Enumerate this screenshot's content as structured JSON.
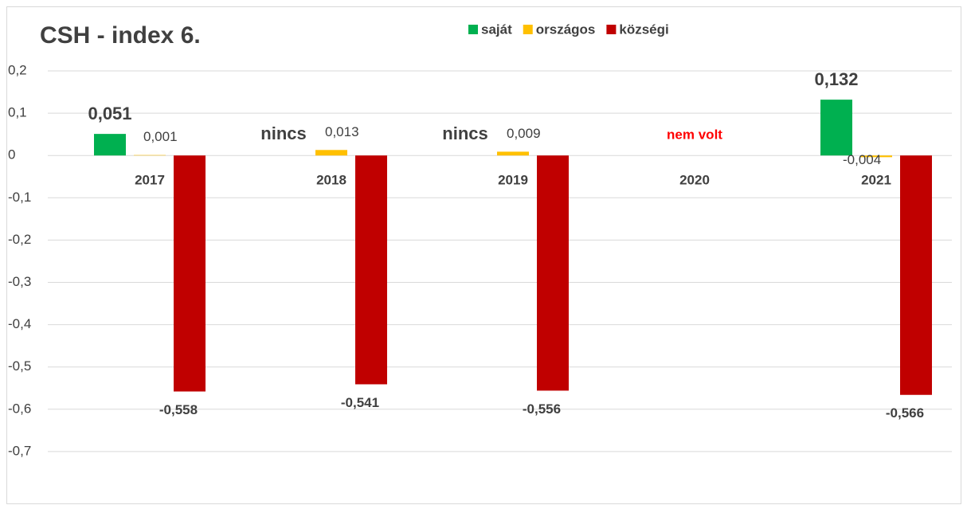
{
  "chart_data": {
    "type": "bar",
    "title": "CSH - index 6.",
    "categories": [
      "2017",
      "2018",
      "2019",
      "2020",
      "2021"
    ],
    "series": [
      {
        "name": "saját",
        "color": "#00b050",
        "values": [
          0.051,
          null,
          null,
          null,
          0.132
        ],
        "value_labels": [
          "0,051",
          null,
          null,
          null,
          "0,132"
        ]
      },
      {
        "name": "országos",
        "color": "#ffc000",
        "values": [
          0.001,
          0.013,
          0.009,
          null,
          -0.004
        ],
        "value_labels": [
          "0,001",
          "0,013",
          "0,009",
          null,
          "-0,004"
        ]
      },
      {
        "name": "községi",
        "color": "#c00000",
        "values": [
          -0.558,
          -0.541,
          -0.556,
          null,
          -0.566
        ],
        "value_labels": [
          "-0,558",
          "-0,541",
          "-0,556",
          null,
          "-0,566"
        ]
      }
    ],
    "annotations": [
      {
        "text": "nincs",
        "category": "2018"
      },
      {
        "text": "nincs",
        "category": "2019"
      },
      {
        "text": "nem volt",
        "category": "2020",
        "color": "#ff0000"
      }
    ],
    "ylim": [
      -0.8,
      0.2
    ],
    "yticks": [
      {
        "value": 0.2,
        "label": "0,2"
      },
      {
        "value": 0.1,
        "label": "0,1"
      },
      0,
      {
        "value": -0.1,
        "label": "-0,1"
      },
      {
        "value": -0.2,
        "label": "-0,2"
      },
      {
        "value": -0.3,
        "label": "-0,3"
      },
      {
        "value": -0.4,
        "label": "-0,4"
      },
      {
        "value": -0.5,
        "label": "-0,5"
      },
      {
        "value": -0.6,
        "label": "-0,6"
      },
      {
        "value": -0.7,
        "label": "-0,7"
      }
    ],
    "grid": true,
    "legend": "top"
  }
}
